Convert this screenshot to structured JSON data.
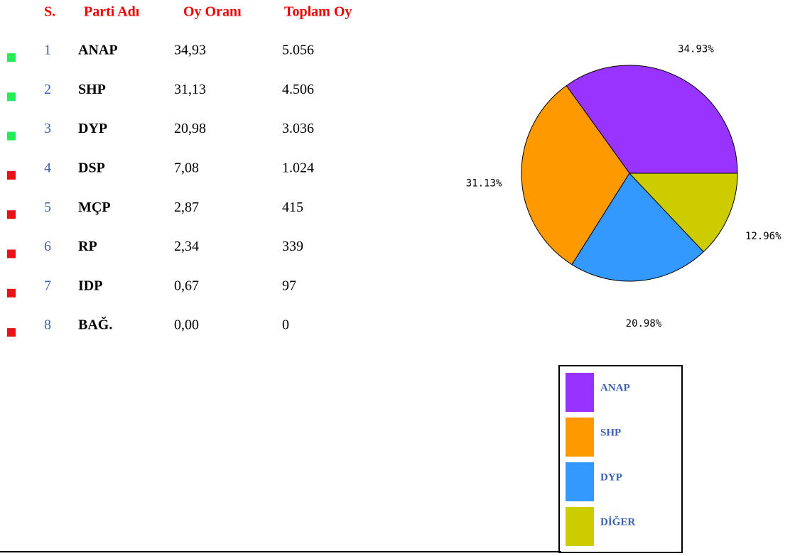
{
  "table": {
    "headers": [
      "S.",
      "Parti Adı",
      "Oy Oranı",
      "Toplam Oy"
    ],
    "rows": [
      [
        "1",
        "ANAP",
        "34,93",
        "5.056"
      ],
      [
        "2",
        "SHP",
        "31,13",
        "4.506"
      ],
      [
        "3",
        "DYP",
        "20,98",
        "3.036"
      ],
      [
        "4",
        "DSP",
        "7,08",
        "1.024"
      ],
      [
        "5",
        "MÇP",
        "2,87",
        "415"
      ],
      [
        "6",
        "RP",
        "2,34",
        "339"
      ],
      [
        "7",
        "IDP",
        "0,67",
        "97"
      ],
      [
        "8",
        "BAĞ.",
        "0,00",
        "0"
      ]
    ],
    "row_colors": [
      "#22ee55",
      "#22ee55",
      "#22ee55",
      "#ee1111",
      "#ee1111",
      "#ee1111",
      "#ee1111",
      "#ee1111"
    ]
  },
  "chart_data": {
    "type": "pie",
    "categories": [
      "ANAP",
      "SHP",
      "DYP",
      "DİĞER"
    ],
    "values": [
      34.93,
      31.13,
      20.98,
      12.96
    ],
    "value_labels": [
      "34.93%",
      "31.13%",
      "20.98%",
      "12.96%"
    ],
    "colors": [
      "#9933ff",
      "#ff9900",
      "#3399ff",
      "#cccc00"
    ]
  }
}
